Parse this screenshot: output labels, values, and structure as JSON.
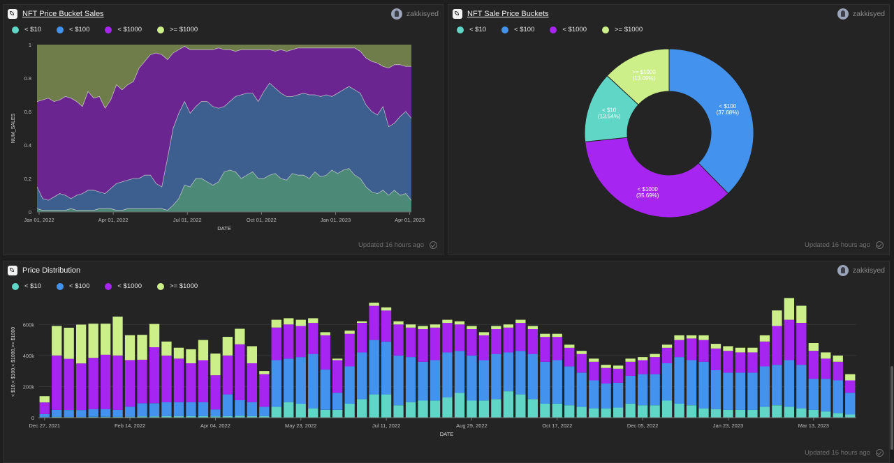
{
  "colors": {
    "lt10": "#5fd6c6",
    "lt100": "#4393ee",
    "lt1000": "#a625f0",
    "gte1000": "#ccef89"
  },
  "updated": "Updated 16 hours ago",
  "panel1": {
    "title": "NFT Price Bucket Sales",
    "author": "zakkisyed",
    "legend": [
      "< $10",
      "< $100",
      "< $1000",
      ">= $1000"
    ]
  },
  "panel2": {
    "title": "NFT Sale Price Buckets",
    "author": "zakkisyed",
    "legend": [
      "< $10",
      "< $100",
      "< $1000",
      ">= $1000"
    ]
  },
  "panel3": {
    "title": "Price Distribution",
    "author": "zakkisyed",
    "legend": [
      "< $10",
      "< $100",
      "< $1000",
      ">= $1000"
    ]
  },
  "chart_data": [
    {
      "type": "area",
      "stacked": "normalized",
      "xlabel": "DATE",
      "ylabel": "NUM_SALES",
      "ylim": [
        0,
        1
      ],
      "yticks": [
        "0",
        "0.2",
        "0.4",
        "0.6",
        "0.8",
        "1"
      ],
      "xticks": [
        "Jan 01, 2022",
        "Apr 01, 2022",
        "Jul 01, 2022",
        "Oct 01, 2022",
        "Jan 01, 2023",
        "Apr 01, 2023"
      ],
      "x": [
        "2021-12-27",
        "2022-01-03",
        "2022-01-10",
        "2022-01-17",
        "2022-01-24",
        "2022-01-31",
        "2022-02-07",
        "2022-02-14",
        "2022-02-21",
        "2022-02-28",
        "2022-03-07",
        "2022-03-14",
        "2022-03-21",
        "2022-03-28",
        "2022-04-04",
        "2022-04-11",
        "2022-04-18",
        "2022-04-25",
        "2022-05-02",
        "2022-05-09",
        "2022-05-16",
        "2022-05-23",
        "2022-05-30",
        "2022-06-06",
        "2022-06-13",
        "2022-06-20",
        "2022-06-27",
        "2022-07-04",
        "2022-07-11",
        "2022-07-18",
        "2022-07-25",
        "2022-08-01",
        "2022-08-08",
        "2022-08-15",
        "2022-08-22",
        "2022-08-29",
        "2022-09-05",
        "2022-09-12",
        "2022-09-19",
        "2022-09-26",
        "2022-10-03",
        "2022-10-10",
        "2022-10-17",
        "2022-10-24",
        "2022-10-31",
        "2022-11-07",
        "2022-11-14",
        "2022-11-21",
        "2022-11-28",
        "2022-12-05",
        "2022-12-12",
        "2022-12-19",
        "2022-12-26",
        "2023-01-02",
        "2023-01-09",
        "2023-01-16",
        "2023-01-23",
        "2023-01-30",
        "2023-02-06",
        "2023-02-13",
        "2023-02-20",
        "2023-02-27",
        "2023-03-06",
        "2023-03-13",
        "2023-03-20",
        "2023-03-27",
        "2023-04-03"
      ],
      "series": [
        {
          "name": "< $10",
          "values": [
            0.02,
            0.01,
            0.01,
            0.01,
            0.01,
            0.01,
            0.02,
            0.01,
            0.01,
            0.01,
            0.01,
            0.02,
            0.02,
            0.02,
            0.01,
            0.01,
            0.02,
            0.02,
            0.02,
            0.02,
            0.02,
            0.02,
            0.02,
            0.01,
            0.04,
            0.08,
            0.16,
            0.15,
            0.2,
            0.2,
            0.18,
            0.16,
            0.18,
            0.24,
            0.25,
            0.24,
            0.2,
            0.22,
            0.24,
            0.2,
            0.2,
            0.22,
            0.23,
            0.2,
            0.19,
            0.23,
            0.22,
            0.22,
            0.2,
            0.24,
            0.21,
            0.22,
            0.25,
            0.23,
            0.25,
            0.26,
            0.22,
            0.2,
            0.15,
            0.12,
            0.11,
            0.13,
            0.1,
            0.13,
            0.1,
            0.11,
            0.07
          ]
        },
        {
          "name": "< $100",
          "values": [
            0.13,
            0.07,
            0.06,
            0.08,
            0.1,
            0.09,
            0.06,
            0.09,
            0.1,
            0.12,
            0.12,
            0.1,
            0.09,
            0.12,
            0.16,
            0.17,
            0.17,
            0.18,
            0.18,
            0.2,
            0.2,
            0.15,
            0.13,
            0.31,
            0.46,
            0.51,
            0.5,
            0.44,
            0.43,
            0.46,
            0.48,
            0.47,
            0.44,
            0.39,
            0.41,
            0.45,
            0.5,
            0.49,
            0.47,
            0.46,
            0.52,
            0.55,
            0.51,
            0.51,
            0.5,
            0.46,
            0.48,
            0.49,
            0.5,
            0.46,
            0.48,
            0.48,
            0.44,
            0.48,
            0.48,
            0.49,
            0.51,
            0.51,
            0.49,
            0.48,
            0.47,
            0.5,
            0.41,
            0.4,
            0.47,
            0.49,
            0.49
          ]
        },
        {
          "name": "< $1000",
          "values": [
            0.51,
            0.59,
            0.61,
            0.57,
            0.56,
            0.59,
            0.6,
            0.56,
            0.52,
            0.59,
            0.55,
            0.57,
            0.51,
            0.53,
            0.59,
            0.55,
            0.57,
            0.58,
            0.66,
            0.68,
            0.72,
            0.78,
            0.79,
            0.59,
            0.45,
            0.38,
            0.33,
            0.38,
            0.34,
            0.31,
            0.31,
            0.34,
            0.36,
            0.34,
            0.31,
            0.27,
            0.27,
            0.26,
            0.26,
            0.31,
            0.25,
            0.2,
            0.22,
            0.26,
            0.27,
            0.28,
            0.28,
            0.27,
            0.28,
            0.28,
            0.29,
            0.28,
            0.29,
            0.27,
            0.25,
            0.23,
            0.25,
            0.25,
            0.28,
            0.3,
            0.31,
            0.24,
            0.35,
            0.35,
            0.31,
            0.27,
            0.31
          ]
        },
        {
          "name": ">= $1000",
          "values": [
            0.34,
            0.33,
            0.32,
            0.34,
            0.33,
            0.31,
            0.32,
            0.34,
            0.37,
            0.28,
            0.32,
            0.31,
            0.38,
            0.33,
            0.24,
            0.27,
            0.24,
            0.22,
            0.14,
            0.1,
            0.06,
            0.05,
            0.06,
            0.09,
            0.05,
            0.03,
            0.01,
            0.03,
            0.03,
            0.03,
            0.03,
            0.03,
            0.02,
            0.03,
            0.03,
            0.04,
            0.03,
            0.03,
            0.03,
            0.03,
            0.03,
            0.03,
            0.04,
            0.03,
            0.04,
            0.03,
            0.02,
            0.02,
            0.02,
            0.02,
            0.02,
            0.02,
            0.02,
            0.02,
            0.02,
            0.02,
            0.02,
            0.04,
            0.08,
            0.1,
            0.11,
            0.13,
            0.14,
            0.12,
            0.12,
            0.13,
            0.13
          ]
        }
      ]
    },
    {
      "type": "pie",
      "donut": true,
      "slices": [
        {
          "label": "< $100",
          "value": 37.68,
          "text": "(37.68%)"
        },
        {
          "label": "< $1000",
          "value": 35.69,
          "text": "(35.69%)"
        },
        {
          "label": "< $10",
          "value": 13.54,
          "text": "(13.54%)"
        },
        {
          "label": ">= $1000",
          "value": 13.09,
          "text": "(13.09%)"
        }
      ]
    },
    {
      "type": "bar",
      "stacked": true,
      "xlabel": "DATE",
      "ylabel": "< $10,< $100,< $1000,>= $1000",
      "ylim": [
        0,
        700000
      ],
      "yticks": [
        "0",
        "200k",
        "400k",
        "600k"
      ],
      "xticks": [
        "Dec 27, 2021",
        "Feb 14, 2022",
        "Apr 04, 2022",
        "May 23, 2022",
        "Jul 11, 2022",
        "Aug 29, 2022",
        "Oct 17, 2022",
        "Dec 05, 2022",
        "Jan 23, 2023",
        "Mar 13, 2023"
      ],
      "categories": [
        "2021-12-27",
        "2022-01-03",
        "2022-01-10",
        "2022-01-17",
        "2022-01-24",
        "2022-01-31",
        "2022-02-07",
        "2022-02-14",
        "2022-02-21",
        "2022-02-28",
        "2022-03-07",
        "2022-03-14",
        "2022-03-21",
        "2022-03-28",
        "2022-04-04",
        "2022-04-11",
        "2022-04-18",
        "2022-04-25",
        "2022-05-02",
        "2022-05-09",
        "2022-05-16",
        "2022-05-23",
        "2022-05-30",
        "2022-06-06",
        "2022-06-13",
        "2022-06-20",
        "2022-06-27",
        "2022-07-04",
        "2022-07-11",
        "2022-07-18",
        "2022-07-25",
        "2022-08-01",
        "2022-08-08",
        "2022-08-15",
        "2022-08-22",
        "2022-08-29",
        "2022-09-05",
        "2022-09-12",
        "2022-09-19",
        "2022-09-26",
        "2022-10-03",
        "2022-10-10",
        "2022-10-17",
        "2022-10-24",
        "2022-10-31",
        "2022-11-07",
        "2022-11-14",
        "2022-11-21",
        "2022-11-28",
        "2022-12-05",
        "2022-12-12",
        "2022-12-19",
        "2022-12-26",
        "2023-01-02",
        "2023-01-09",
        "2023-01-16",
        "2023-01-23",
        "2023-01-30",
        "2023-02-06",
        "2023-02-13",
        "2023-02-20",
        "2023-02-27",
        "2023-03-06",
        "2023-03-13",
        "2023-03-20",
        "2023-03-27",
        "2023-04-03"
      ],
      "series": [
        {
          "name": "< $10",
          "values": [
            3000,
            5000,
            4000,
            4000,
            5000,
            5000,
            5000,
            6000,
            8000,
            8000,
            10000,
            10000,
            10000,
            10000,
            8000,
            10000,
            12000,
            10000,
            10000,
            70000,
            100000,
            90000,
            60000,
            50000,
            50000,
            90000,
            120000,
            150000,
            150000,
            80000,
            100000,
            110000,
            110000,
            130000,
            160000,
            110000,
            110000,
            120000,
            170000,
            150000,
            120000,
            90000,
            90000,
            80000,
            70000,
            60000,
            60000,
            65000,
            90000,
            80000,
            80000,
            110000,
            90000,
            80000,
            60000,
            55000,
            50000,
            50000,
            50000,
            70000,
            80000,
            70000,
            60000,
            50000,
            40000,
            30000,
            20000
          ]
        },
        {
          "name": "< $100",
          "values": [
            20000,
            45000,
            45000,
            45000,
            50000,
            50000,
            45000,
            65000,
            85000,
            85000,
            90000,
            90000,
            90000,
            90000,
            45000,
            140000,
            100000,
            90000,
            60000,
            300000,
            280000,
            300000,
            350000,
            260000,
            110000,
            240000,
            300000,
            350000,
            340000,
            320000,
            290000,
            250000,
            260000,
            290000,
            270000,
            290000,
            260000,
            290000,
            250000,
            280000,
            290000,
            270000,
            280000,
            250000,
            220000,
            180000,
            160000,
            160000,
            180000,
            200000,
            200000,
            240000,
            300000,
            290000,
            300000,
            250000,
            240000,
            240000,
            240000,
            260000,
            260000,
            300000,
            280000,
            200000,
            210000,
            210000,
            140000
          ]
        },
        {
          "name": "< $1000",
          "values": [
            75000,
            350000,
            330000,
            300000,
            330000,
            350000,
            350000,
            300000,
            280000,
            360000,
            300000,
            280000,
            250000,
            270000,
            220000,
            250000,
            360000,
            250000,
            210000,
            210000,
            220000,
            200000,
            200000,
            220000,
            210000,
            210000,
            190000,
            220000,
            200000,
            200000,
            190000,
            210000,
            210000,
            190000,
            170000,
            170000,
            160000,
            160000,
            160000,
            180000,
            160000,
            160000,
            150000,
            120000,
            120000,
            120000,
            100000,
            90000,
            90000,
            90000,
            110000,
            100000,
            110000,
            140000,
            140000,
            140000,
            140000,
            130000,
            130000,
            160000,
            250000,
            260000,
            270000,
            180000,
            130000,
            120000,
            80000
          ]
        },
        {
          "name": ">= $1000",
          "values": [
            40000,
            190000,
            200000,
            250000,
            220000,
            200000,
            250000,
            160000,
            160000,
            150000,
            90000,
            70000,
            90000,
            130000,
            140000,
            120000,
            100000,
            110000,
            20000,
            50000,
            40000,
            40000,
            30000,
            20000,
            10000,
            20000,
            10000,
            20000,
            20000,
            20000,
            20000,
            20000,
            20000,
            20000,
            20000,
            20000,
            20000,
            20000,
            20000,
            20000,
            20000,
            20000,
            20000,
            20000,
            20000,
            20000,
            20000,
            20000,
            20000,
            20000,
            20000,
            20000,
            30000,
            20000,
            30000,
            30000,
            30000,
            30000,
            30000,
            40000,
            100000,
            140000,
            110000,
            50000,
            40000,
            40000,
            40000
          ]
        }
      ]
    }
  ]
}
